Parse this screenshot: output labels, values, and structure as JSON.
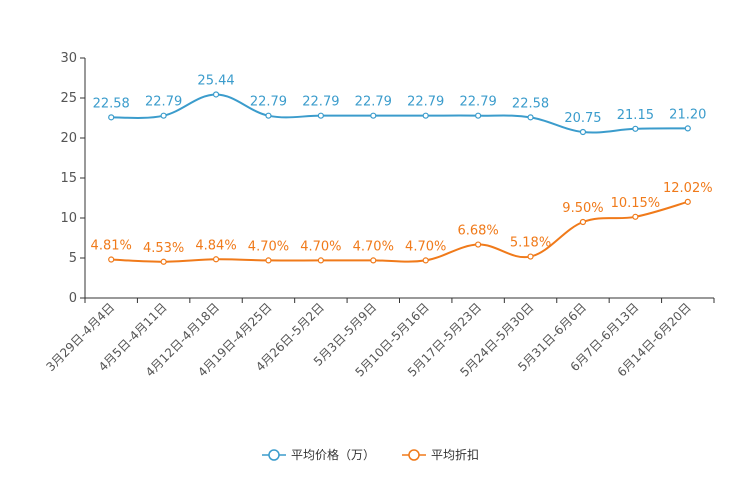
{
  "chart_data": {
    "type": "line",
    "title": "",
    "xlabel": "",
    "ylabel": "",
    "ylim": [
      0,
      30
    ],
    "yticks": [
      0,
      5,
      10,
      15,
      20,
      25,
      30
    ],
    "categories": [
      "3月29日-4月4日",
      "4月5日-4月11日",
      "4月12日-4月18日",
      "4月19日-4月25日",
      "4月26日-5月2日",
      "5月3日-5月9日",
      "5月10日-5月16日",
      "5月17日-5月23日",
      "5月24日-5月30日",
      "5月31日-6月6日",
      "6月7日-6月13日",
      "6月14日-6月20日"
    ],
    "series": [
      {
        "name": "平均价格（万）",
        "color": "#3b9ccc",
        "values": [
          22.58,
          22.79,
          25.44,
          22.79,
          22.79,
          22.79,
          22.79,
          22.79,
          22.58,
          20.75,
          21.15,
          21.2
        ],
        "labels": [
          "22.58",
          "22.79",
          "25.44",
          "22.79",
          "22.79",
          "22.79",
          "22.79",
          "22.79",
          "22.58",
          "20.75",
          "21.15",
          "21.20"
        ]
      },
      {
        "name": "平均折扣",
        "color": "#f07a1a",
        "values": [
          4.81,
          4.53,
          4.84,
          4.7,
          4.7,
          4.7,
          4.7,
          6.68,
          5.18,
          9.5,
          10.15,
          12.02
        ],
        "labels": [
          "4.81%",
          "4.53%",
          "4.84%",
          "4.70%",
          "4.70%",
          "4.70%",
          "4.70%",
          "6.68%",
          "5.18%",
          "9.50%",
          "10.15%",
          "12.02%"
        ]
      }
    ],
    "legend_position": "bottom-center",
    "grid": false
  }
}
